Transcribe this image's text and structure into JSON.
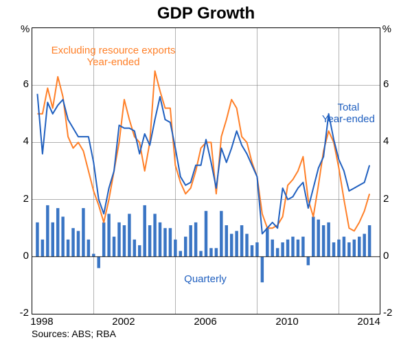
{
  "chart": {
    "type": "line+bar",
    "title": "GDP Growth",
    "title_fontsize": 24,
    "background_color": "#ffffff",
    "grid_color": "#808080",
    "axis_color": "#000000",
    "ylim": [
      -2,
      8
    ],
    "ytick_step": 2,
    "yticks": [
      -2,
      0,
      2,
      4,
      6
    ],
    "y_unit": "%",
    "xlim": [
      1997.5,
      2014.5
    ],
    "xticks": [
      1998,
      2002,
      2006,
      2010,
      2014
    ],
    "tick_fontsize": 15,
    "sources": "Sources:   ABS; RBA",
    "sources_fontsize": 14,
    "quarterly_bars": {
      "label_top": "Quarterly",
      "color": "#3a75c4",
      "bar_width": 0.6,
      "x": [
        1997.75,
        1998.0,
        1998.25,
        1998.5,
        1998.75,
        1999.0,
        1999.25,
        1999.5,
        1999.75,
        2000.0,
        2000.25,
        2000.5,
        2000.75,
        2001.0,
        2001.25,
        2001.5,
        2001.75,
        2002.0,
        2002.25,
        2002.5,
        2002.75,
        2003.0,
        2003.25,
        2003.5,
        2003.75,
        2004.0,
        2004.25,
        2004.5,
        2004.75,
        2005.0,
        2005.25,
        2005.5,
        2005.75,
        2006.0,
        2006.25,
        2006.5,
        2006.75,
        2007.0,
        2007.25,
        2007.5,
        2007.75,
        2008.0,
        2008.25,
        2008.5,
        2008.75,
        2009.0,
        2009.25,
        2009.5,
        2009.75,
        2010.0,
        2010.25,
        2010.5,
        2010.75,
        2011.0,
        2011.25,
        2011.5,
        2011.75,
        2012.0,
        2012.25,
        2012.5,
        2012.75,
        2013.0,
        2013.25,
        2013.5,
        2013.75,
        2014.0
      ],
      "values": [
        1.2,
        0.6,
        1.8,
        1.2,
        1.7,
        1.4,
        0.6,
        1.0,
        0.9,
        1.7,
        0.6,
        0.1,
        -0.4,
        1.2,
        1.5,
        0.7,
        1.2,
        1.1,
        1.5,
        0.6,
        0.4,
        1.8,
        1.1,
        1.5,
        1.2,
        1.0,
        1.0,
        0.6,
        0.2,
        0.7,
        1.1,
        1.2,
        0.2,
        1.6,
        0.3,
        0.3,
        1.6,
        1.1,
        0.8,
        0.9,
        1.1,
        0.8,
        0.4,
        0.5,
        -0.9,
        1.0,
        0.6,
        0.3,
        0.5,
        0.6,
        0.7,
        0.6,
        0.7,
        -0.3,
        1.4,
        1.3,
        1.1,
        1.2,
        0.5,
        0.6,
        0.7,
        0.5,
        0.6,
        0.7,
        0.8,
        1.1
      ]
    },
    "total_line": {
      "label_top": "Total",
      "label_bottom": "Year-ended",
      "color": "#1f5fbf",
      "line_width": 2.0,
      "x": [
        1997.75,
        1998.0,
        1998.25,
        1998.5,
        1998.75,
        1999.0,
        1999.25,
        1999.5,
        1999.75,
        2000.0,
        2000.25,
        2000.5,
        2000.75,
        2001.0,
        2001.25,
        2001.5,
        2001.75,
        2002.0,
        2002.25,
        2002.5,
        2002.75,
        2003.0,
        2003.25,
        2003.5,
        2003.75,
        2004.0,
        2004.25,
        2004.5,
        2004.75,
        2005.0,
        2005.25,
        2005.5,
        2005.75,
        2006.0,
        2006.25,
        2006.5,
        2006.75,
        2007.0,
        2007.25,
        2007.5,
        2007.75,
        2008.0,
        2008.25,
        2008.5,
        2008.75,
        2009.0,
        2009.25,
        2009.5,
        2009.75,
        2010.0,
        2010.25,
        2010.5,
        2010.75,
        2011.0,
        2011.25,
        2011.5,
        2011.75,
        2012.0,
        2012.25,
        2012.5,
        2012.75,
        2013.0,
        2013.25,
        2013.5,
        2013.75,
        2014.0
      ],
      "values": [
        5.7,
        3.6,
        5.4,
        5.0,
        5.3,
        5.5,
        4.8,
        4.5,
        4.2,
        4.2,
        4.2,
        3.3,
        2.0,
        1.5,
        2.4,
        3.0,
        4.6,
        4.5,
        4.5,
        4.4,
        3.6,
        4.3,
        3.9,
        4.8,
        5.6,
        4.8,
        4.7,
        3.8,
        2.8,
        2.5,
        2.6,
        3.2,
        3.2,
        4.1,
        3.3,
        2.4,
        3.8,
        3.3,
        3.8,
        4.4,
        3.9,
        3.6,
        3.2,
        2.8,
        0.8,
        1.0,
        1.2,
        1.0,
        2.4,
        2.0,
        2.1,
        2.4,
        2.6,
        1.7,
        2.4,
        3.1,
        3.5,
        5.0,
        4.1,
        3.4,
        3.0,
        2.3,
        2.4,
        2.5,
        2.6,
        3.2
      ]
    },
    "excl_line": {
      "label_top": "Excluding resource exports",
      "label_bottom": "Year-ended",
      "color": "#ff7f27",
      "line_width": 2.0,
      "x": [
        1997.75,
        1998.0,
        1998.25,
        1998.5,
        1998.75,
        1999.0,
        1999.25,
        1999.5,
        1999.75,
        2000.0,
        2000.25,
        2000.5,
        2000.75,
        2001.0,
        2001.25,
        2001.5,
        2001.75,
        2002.0,
        2002.25,
        2002.5,
        2002.75,
        2003.0,
        2003.25,
        2003.5,
        2003.75,
        2004.0,
        2004.25,
        2004.5,
        2004.75,
        2005.0,
        2005.25,
        2005.5,
        2005.75,
        2006.0,
        2006.25,
        2006.5,
        2006.75,
        2007.0,
        2007.25,
        2007.5,
        2007.75,
        2008.0,
        2008.25,
        2008.5,
        2008.75,
        2009.0,
        2009.25,
        2009.5,
        2009.75,
        2010.0,
        2010.25,
        2010.5,
        2010.75,
        2011.0,
        2011.25,
        2011.5,
        2011.75,
        2012.0,
        2012.25,
        2012.5,
        2012.75,
        2013.0,
        2013.25,
        2013.5,
        2013.75,
        2014.0
      ],
      "values": [
        5.0,
        5.0,
        5.9,
        5.2,
        6.3,
        5.6,
        4.2,
        3.8,
        4.0,
        3.7,
        3.0,
        2.3,
        1.8,
        1.2,
        2.0,
        3.0,
        4.0,
        5.5,
        4.8,
        4.2,
        4.0,
        3.0,
        4.0,
        6.5,
        5.8,
        5.2,
        5.2,
        3.2,
        2.6,
        2.2,
        2.4,
        3.0,
        3.8,
        4.0,
        4.0,
        2.2,
        4.2,
        4.8,
        5.5,
        5.2,
        4.2,
        4.0,
        3.3,
        2.8,
        1.5,
        1.0,
        1.0,
        1.1,
        1.4,
        2.5,
        2.7,
        3.0,
        3.5,
        2.0,
        1.4,
        2.5,
        3.7,
        4.4,
        4.0,
        3.1,
        2.0,
        1.0,
        0.9,
        1.2,
        1.6,
        2.2
      ]
    },
    "labels_pos": {
      "excl": {
        "x": 2001.5,
        "y_top": 7.4
      },
      "total": {
        "x": 2013.0,
        "y_top": 5.4
      },
      "quarterly": {
        "x": 2006.0,
        "y_top": -0.6
      }
    }
  }
}
